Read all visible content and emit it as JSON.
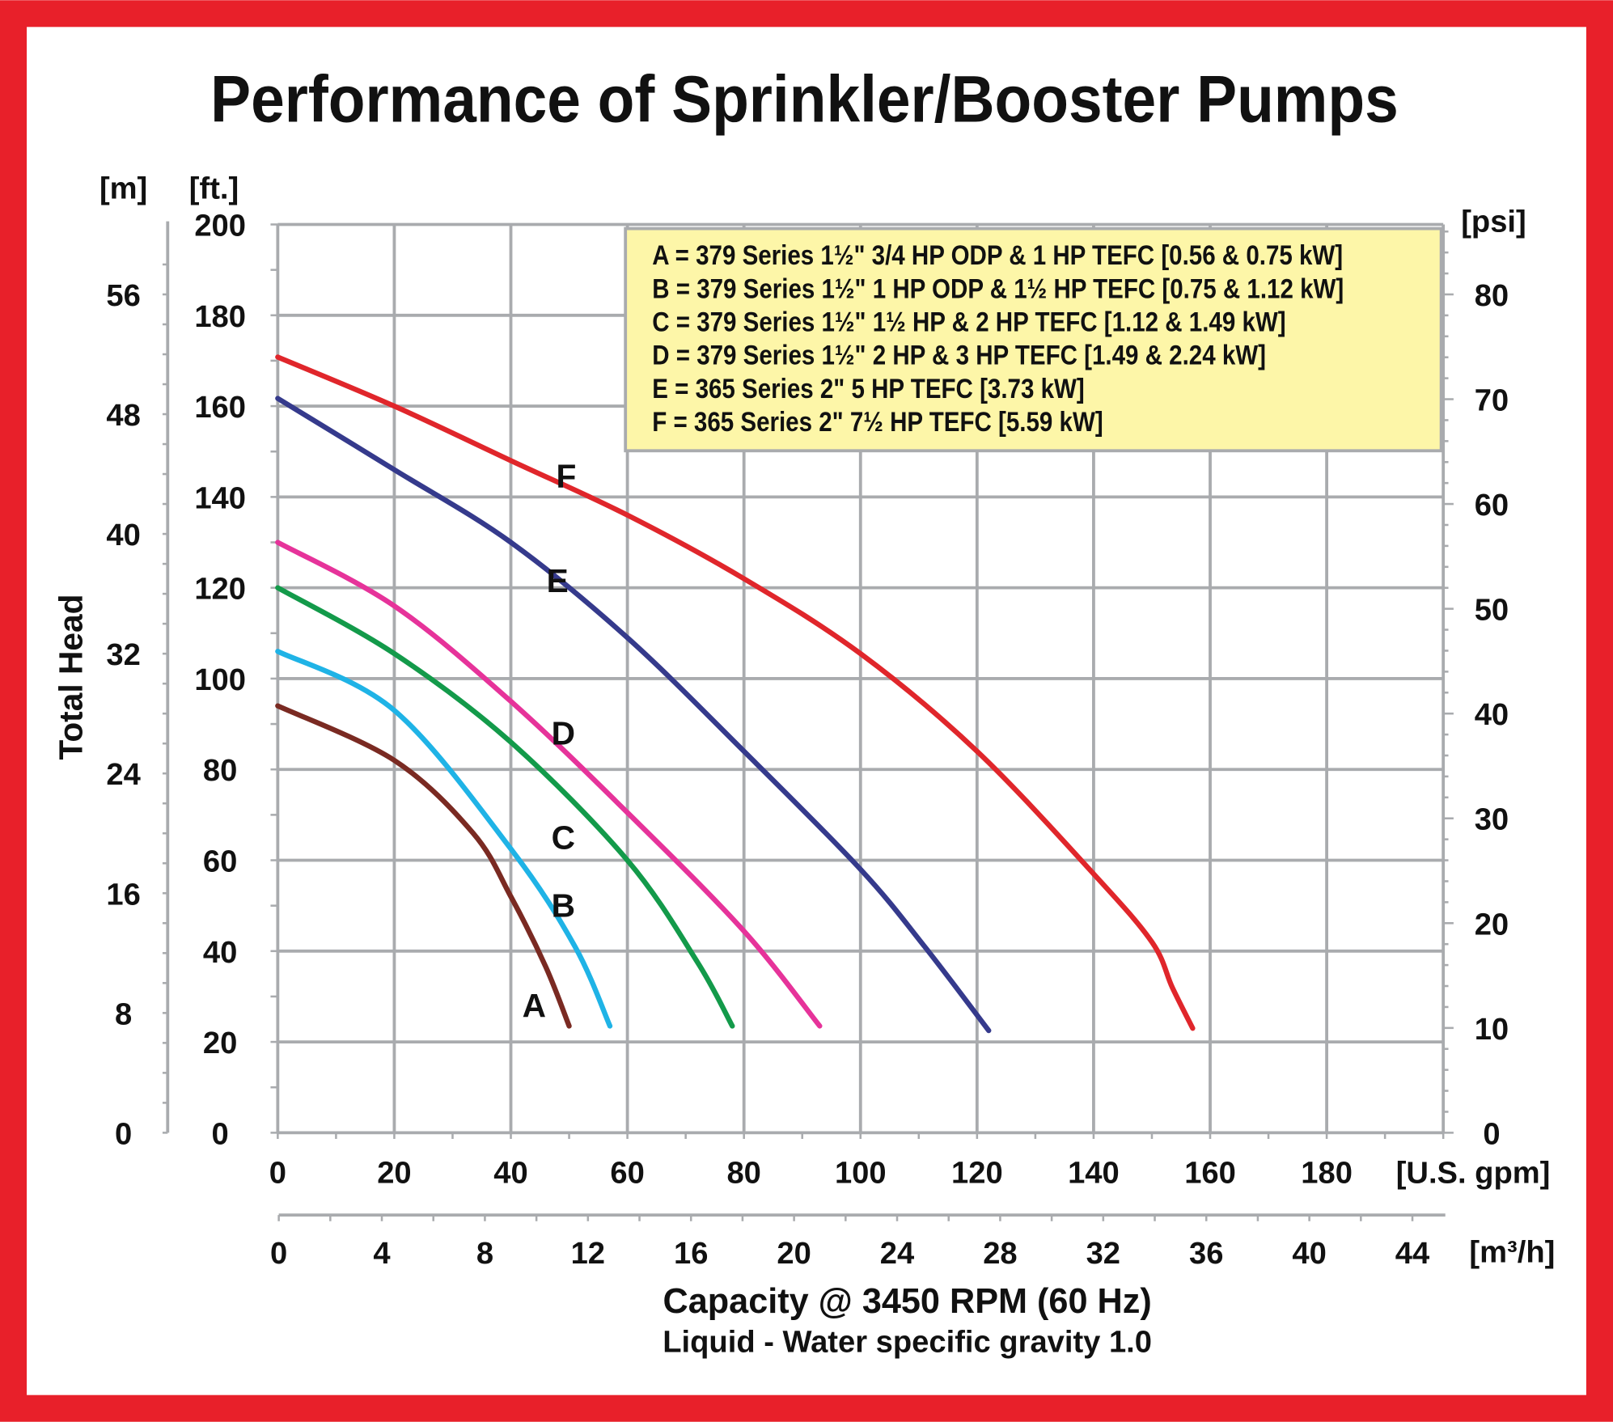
{
  "chart_data": {
    "type": "line",
    "title": "Performance of Sprinkler/Booster Pumps",
    "ylabel": "Total Head",
    "y_units": {
      "left_m": "[m]",
      "left_ft": "[ft.]",
      "right_psi": "[psi]"
    },
    "x_units": {
      "gpm": "[U.S. gpm]",
      "m3h": "[m³/h]"
    },
    "xlabel": "Capacity @ 3450 RPM (60 Hz)",
    "subtitle": "Liquid - Water specific gravity 1.0",
    "xlim_gpm": [
      0,
      200
    ],
    "ylim_ft": [
      0,
      200
    ],
    "x_ticks_gpm": [
      "0",
      "20",
      "40",
      "60",
      "80",
      "100",
      "120",
      "140",
      "160",
      "180"
    ],
    "x_ticks_m3h": [
      "0",
      "4",
      "8",
      "12",
      "16",
      "20",
      "24",
      "28",
      "32",
      "36",
      "40",
      "44"
    ],
    "y_ticks_ft": [
      "0",
      "20",
      "40",
      "60",
      "80",
      "100",
      "120",
      "140",
      "160",
      "180",
      "200"
    ],
    "y_ticks_m": [
      "0",
      "8",
      "16",
      "24",
      "32",
      "40",
      "48",
      "56"
    ],
    "y_ticks_psi": [
      "0",
      "10",
      "20",
      "30",
      "40",
      "50",
      "60",
      "70",
      "80"
    ],
    "grid": true,
    "legend_placement": "top-right",
    "legend": [
      "A = 379 Series 1½\" 3/4 HP ODP & 1 HP TEFC [0.56 & 0.75 kW]",
      "B = 379 Series 1½\" 1 HP ODP & 1½ HP TEFC [0.75 & 1.12 kW]",
      "C = 379 Series 1½\" 1½ HP & 2 HP TEFC [1.12 & 1.49 kW]",
      "D = 379 Series 1½\" 2 HP & 3 HP TEFC [1.49 & 2.24 kW]",
      "E = 365 Series 2\" 5 HP TEFC [3.73 kW]",
      "F = 365 Series 2\" 7½ HP TEFC [5.59 kW]"
    ],
    "series": [
      {
        "name": "A",
        "color": "#7a2a22",
        "x": [
          0,
          20,
          33.5,
          40,
          46,
          50
        ],
        "y": [
          94,
          82,
          66,
          52,
          36.5,
          23.5
        ],
        "label_at": [
          44,
          28
        ]
      },
      {
        "name": "B",
        "color": "#1fb3e6",
        "x": [
          0,
          20,
          40,
          51,
          57
        ],
        "y": [
          106,
          93,
          62.5,
          41,
          23.5
        ],
        "label_at": [
          49,
          50
        ]
      },
      {
        "name": "C",
        "color": "#139a4a",
        "x": [
          0,
          20,
          40,
          60,
          72,
          78
        ],
        "y": [
          120,
          105.5,
          86,
          60,
          37.6,
          23.5
        ],
        "label_at": [
          49,
          65
        ]
      },
      {
        "name": "D",
        "color": "#e6339a",
        "x": [
          0,
          20,
          40,
          60,
          80,
          93
        ],
        "y": [
          130,
          116,
          95,
          70.5,
          44.4,
          23.5
        ],
        "label_at": [
          49,
          88
        ]
      },
      {
        "name": "E",
        "color": "#353a8c",
        "x": [
          0,
          20,
          40,
          60,
          80,
          100,
          111,
          122
        ],
        "y": [
          161.7,
          146,
          130,
          109,
          84,
          58,
          41,
          22.5
        ],
        "label_at": [
          48,
          121.5
        ]
      },
      {
        "name": "F",
        "color": "#e0262b",
        "x": [
          0,
          20,
          40,
          60,
          80,
          100,
          120,
          140,
          150,
          153.5,
          157
        ],
        "y": [
          170.8,
          160,
          148,
          136,
          122,
          105.5,
          84,
          57,
          42,
          32,
          23
        ],
        "label_at": [
          49.5,
          144.5
        ]
      }
    ]
  },
  "colors": {
    "frame": "#e8202a",
    "legend_bg": "#fdf6a8",
    "grid": "#a9abae"
  }
}
